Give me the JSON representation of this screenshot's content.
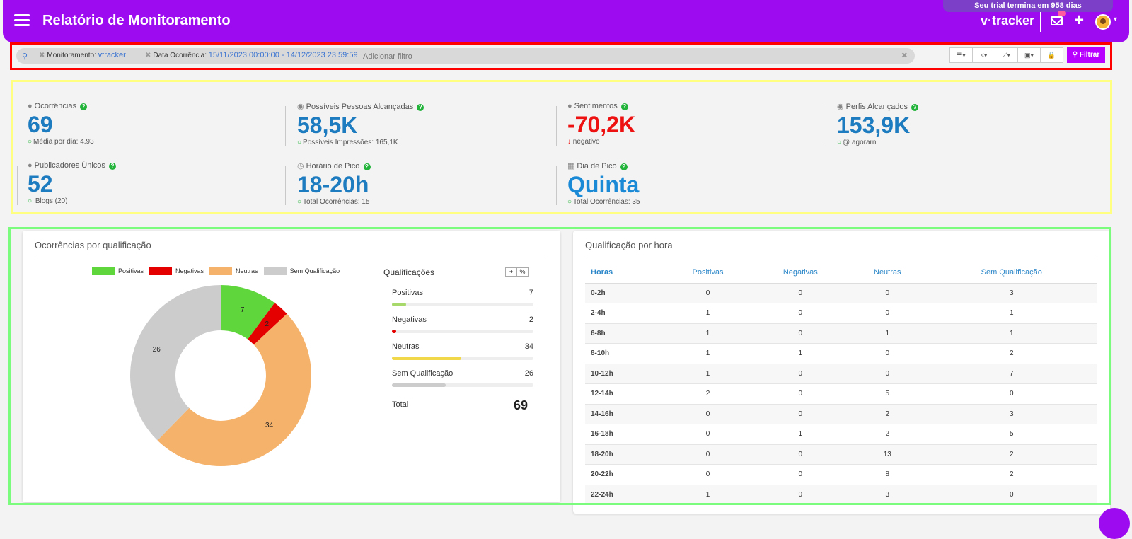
{
  "header": {
    "title": "Relatório de Monitoramento",
    "trial_text": "Seu trial termina em 958 dias",
    "brand": "v·tracker",
    "icons": [
      "menu-icon",
      "mail-icon",
      "plus-icon",
      "avatar",
      "chevron-down-icon"
    ]
  },
  "colors": {
    "header": "#9d0cf0",
    "accent_button": "#b700ff",
    "value_blue": "#1d7bbf",
    "negative_red": "#ee1111",
    "positivas": "#5fd63c",
    "negativas": "#e50000",
    "neutras": "#f5b26b",
    "sem_qualificacao": "#cccccc"
  },
  "filters": {
    "chip1_label": "Monitoramento:",
    "chip1_value": "vtracker",
    "chip2_label": "Data Ocorrência:",
    "chip2_value": "15/11/2023 00:00:00 - 14/12/2023 23:59:59",
    "add_filter": "Adicionar filtro",
    "filter_button": "Filtrar",
    "tools": [
      "list-icon",
      "share-icon",
      "chart-icon",
      "save-icon",
      "unlock-icon"
    ]
  },
  "stats": {
    "ocorrencias": {
      "label": "Ocorrências",
      "value": "69",
      "sub": "Média por dia: 4.93"
    },
    "pessoas": {
      "label": "Possíveis Pessoas Alcançadas",
      "value": "58,5K",
      "sub": "Possíveis Impressões: 165,1K"
    },
    "sentimentos": {
      "label": "Sentimentos",
      "value": "-70,2K",
      "sub": "negativo"
    },
    "perfis": {
      "label": "Perfis Alcançados",
      "value": "153,9K",
      "sub": "@ agorarn"
    },
    "publicadores": {
      "label": "Publicadores Únicos",
      "value": "52",
      "sub": "Blogs (20)"
    },
    "horario": {
      "label": "Horário de Pico",
      "value": "18-20h",
      "sub": "Total Ocorrências: 15"
    },
    "dia": {
      "label": "Dia de Pico",
      "value": "Quinta",
      "sub": "Total Ocorrências: 35"
    }
  },
  "qual_panel": {
    "title": "Ocorrências por qualificação",
    "list_title": "Qualificações",
    "btn_plus": "+",
    "btn_pct": "%",
    "total_label": "Total",
    "total_value": "69",
    "items": [
      {
        "label": "Positivas",
        "value": "7"
      },
      {
        "label": "Negativas",
        "value": "2"
      },
      {
        "label": "Neutras",
        "value": "34"
      },
      {
        "label": "Sem Qualificação",
        "value": "26"
      }
    ]
  },
  "chart_data": {
    "type": "pie",
    "categories": [
      "Positivas",
      "Negativas",
      "Neutras",
      "Sem Qualificação"
    ],
    "values": [
      7,
      2,
      34,
      26
    ],
    "colors": [
      "#5fd63c",
      "#e50000",
      "#f5b26b",
      "#cccccc"
    ],
    "donut": true,
    "legend": "top"
  },
  "hour_panel": {
    "title": "Qualificação por hora",
    "columns": [
      "Horas",
      "Positivas",
      "Negativas",
      "Neutras",
      "Sem Qualificação"
    ],
    "rows": [
      [
        "0-2h",
        "0",
        "0",
        "0",
        "3"
      ],
      [
        "2-4h",
        "1",
        "0",
        "0",
        "1"
      ],
      [
        "6-8h",
        "1",
        "0",
        "1",
        "1"
      ],
      [
        "8-10h",
        "1",
        "1",
        "0",
        "2"
      ],
      [
        "10-12h",
        "1",
        "0",
        "0",
        "7"
      ],
      [
        "12-14h",
        "2",
        "0",
        "5",
        "0"
      ],
      [
        "14-16h",
        "0",
        "0",
        "2",
        "3"
      ],
      [
        "16-18h",
        "0",
        "1",
        "2",
        "5"
      ],
      [
        "18-20h",
        "0",
        "0",
        "13",
        "2"
      ],
      [
        "20-22h",
        "0",
        "0",
        "8",
        "2"
      ],
      [
        "22-24h",
        "1",
        "0",
        "3",
        "0"
      ]
    ]
  }
}
